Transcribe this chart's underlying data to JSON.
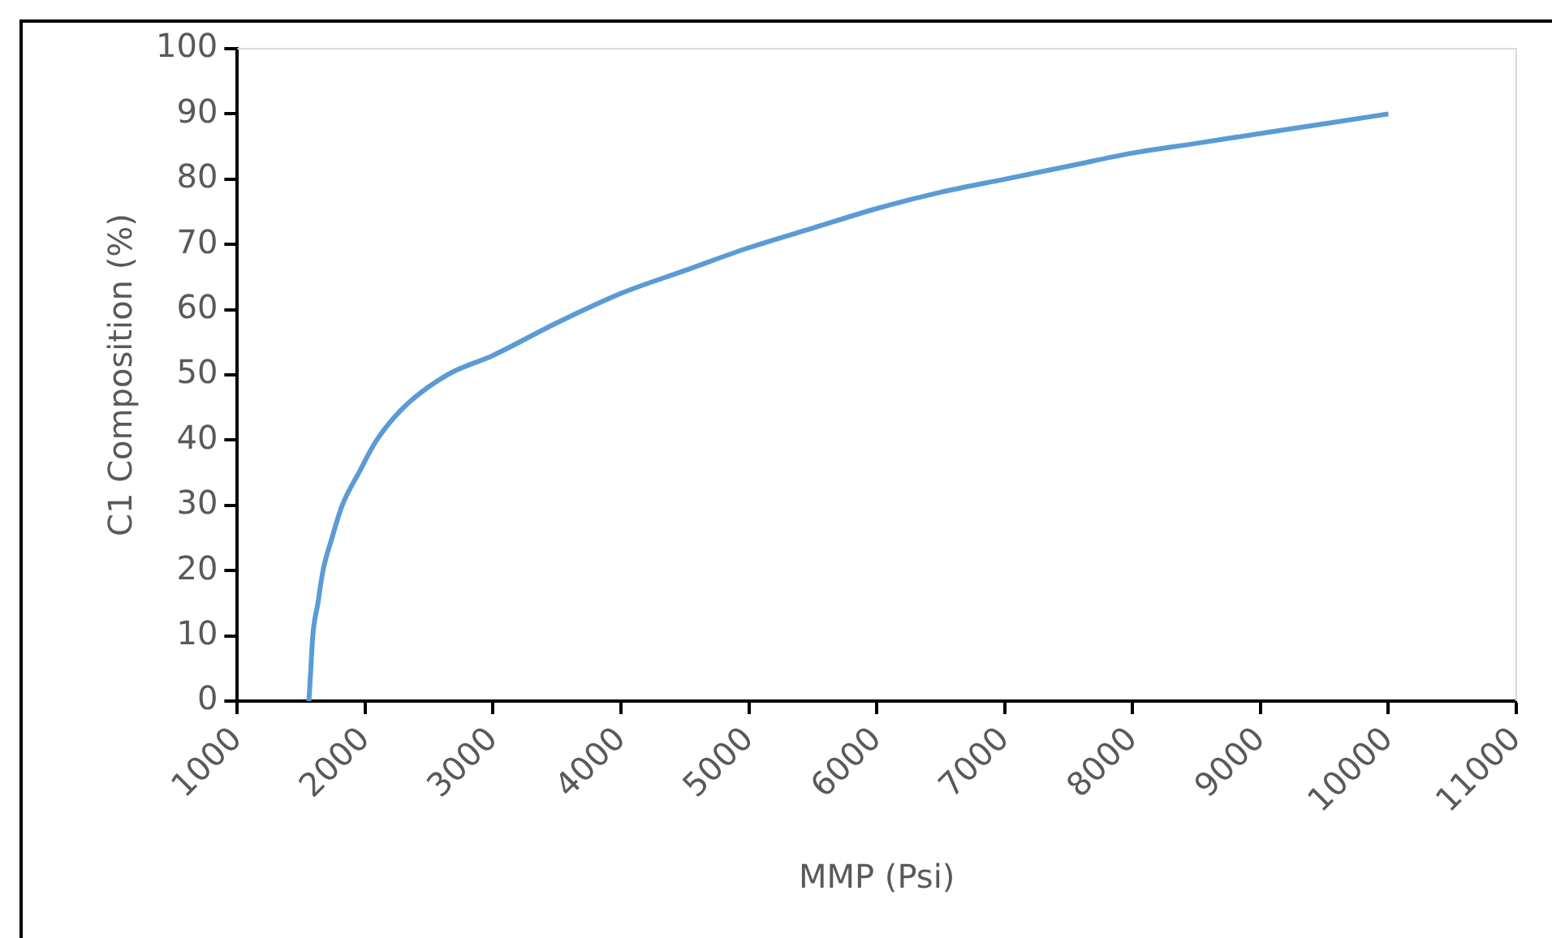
{
  "chart_data": {
    "type": "line",
    "xlabel": "MMP (Psi)",
    "ylabel": "C1 Composition (%)",
    "xlim": [
      1000,
      11000
    ],
    "xticks": [
      1000,
      2000,
      3000,
      4000,
      5000,
      6000,
      7000,
      8000,
      9000,
      10000,
      11000
    ],
    "ylim": [
      0,
      100
    ],
    "yticks": [
      0,
      10,
      20,
      30,
      40,
      50,
      60,
      70,
      80,
      90,
      100
    ],
    "grid": false,
    "legend": false,
    "marker": "none",
    "line_style": "solid",
    "series": [
      {
        "color": "#5b9bd5",
        "x": [
          1560,
          1575,
          1590,
          1630,
          1670,
          1740,
          1820,
          1950,
          2090,
          2300,
          2640,
          3000,
          3500,
          4000,
          4500,
          5000,
          5500,
          6000,
          6500,
          7000,
          7500,
          8000,
          8500,
          9000,
          9500,
          10000
        ],
        "values": [
          0,
          5,
          10,
          15,
          20,
          25,
          30,
          35,
          40,
          45,
          50,
          53,
          58,
          62.5,
          66,
          69.5,
          72.5,
          75.5,
          78,
          80,
          82,
          84,
          85.5,
          87,
          88.5,
          90
        ]
      }
    ]
  }
}
